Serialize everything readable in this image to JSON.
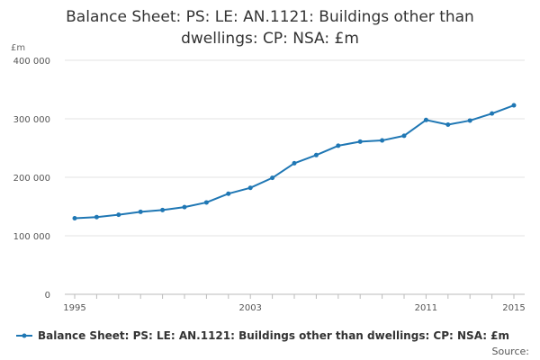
{
  "chart_data": {
    "type": "line",
    "title_lines": [
      "Balance Sheet: PS: LE: AN.1121: Buildings other than",
      "dwellings: CP: NSA: £m"
    ],
    "title": "Balance Sheet: PS: LE: AN.1121: Buildings other than dwellings: CP: NSA: £m",
    "y_unit_label": "£m",
    "x": [
      1995,
      1996,
      1997,
      1998,
      1999,
      2000,
      2001,
      2002,
      2003,
      2004,
      2005,
      2006,
      2007,
      2008,
      2009,
      2010,
      2011,
      2012,
      2013,
      2014,
      2015
    ],
    "series": [
      {
        "name": "Balance Sheet: PS: LE: AN.1121: Buildings other than dwellings: CP: NSA: £m",
        "color": "#1f77b4",
        "values": [
          130000,
          132000,
          136000,
          141000,
          144000,
          149000,
          157000,
          172000,
          182000,
          199000,
          224000,
          238000,
          254000,
          261000,
          263000,
          271000,
          298000,
          290000,
          297000,
          309000,
          323000
        ]
      }
    ],
    "x_tick_labels": [
      "1995",
      "2003",
      "2011",
      "2015"
    ],
    "x_ticks": [
      1995,
      2003,
      2011,
      2015
    ],
    "y_tick_labels": [
      "0",
      "100 000",
      "200 000",
      "300 000",
      "400 000"
    ],
    "y_ticks": [
      0,
      100000,
      200000,
      300000,
      400000
    ],
    "ylim": [
      0,
      400000
    ],
    "xlim": [
      1995,
      2015
    ],
    "grid": "horizontal",
    "legend_position": "bottom",
    "source_label": "Source:"
  }
}
